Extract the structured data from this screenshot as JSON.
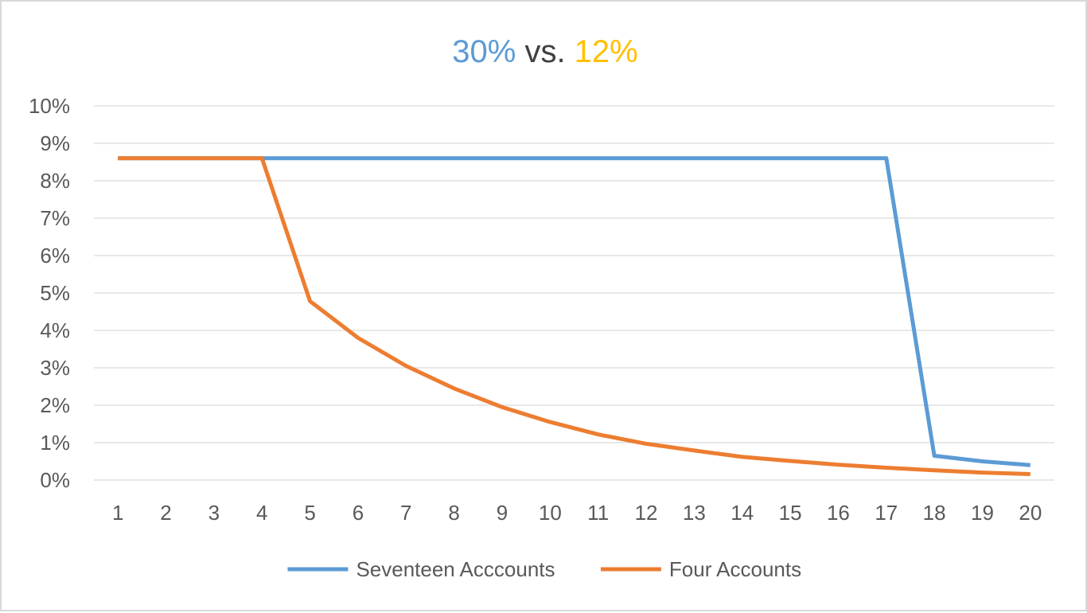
{
  "chart_data": {
    "type": "line",
    "title_parts": [
      {
        "text": "30%",
        "color": "#5b9bd5"
      },
      {
        "text": " vs. ",
        "color": "#404040"
      },
      {
        "text": "12%",
        "color": "#ffc000"
      }
    ],
    "categories": [
      "1",
      "2",
      "3",
      "4",
      "5",
      "6",
      "7",
      "8",
      "9",
      "10",
      "11",
      "12",
      "13",
      "14",
      "15",
      "16",
      "17",
      "18",
      "19",
      "20"
    ],
    "y_ticks": [
      "0%",
      "1%",
      "2%",
      "3%",
      "4%",
      "5%",
      "6%",
      "7%",
      "8%",
      "9%",
      "10%"
    ],
    "ylim": [
      0,
      10
    ],
    "grid": true,
    "legend_position": "bottom",
    "series": [
      {
        "name": "Seventeen Acccounts",
        "color": "#5b9bd5",
        "values": [
          8.6,
          8.6,
          8.6,
          8.6,
          8.6,
          8.6,
          8.6,
          8.6,
          8.6,
          8.6,
          8.6,
          8.6,
          8.6,
          8.6,
          8.6,
          8.6,
          8.6,
          0.65,
          0.5,
          0.4
        ]
      },
      {
        "name": "Four Accounts",
        "color": "#ed7d31",
        "values": [
          8.6,
          8.6,
          8.6,
          8.6,
          4.78,
          3.8,
          3.05,
          2.45,
          1.95,
          1.55,
          1.22,
          0.97,
          0.79,
          0.62,
          0.51,
          0.41,
          0.33,
          0.26,
          0.2,
          0.16
        ]
      }
    ]
  }
}
